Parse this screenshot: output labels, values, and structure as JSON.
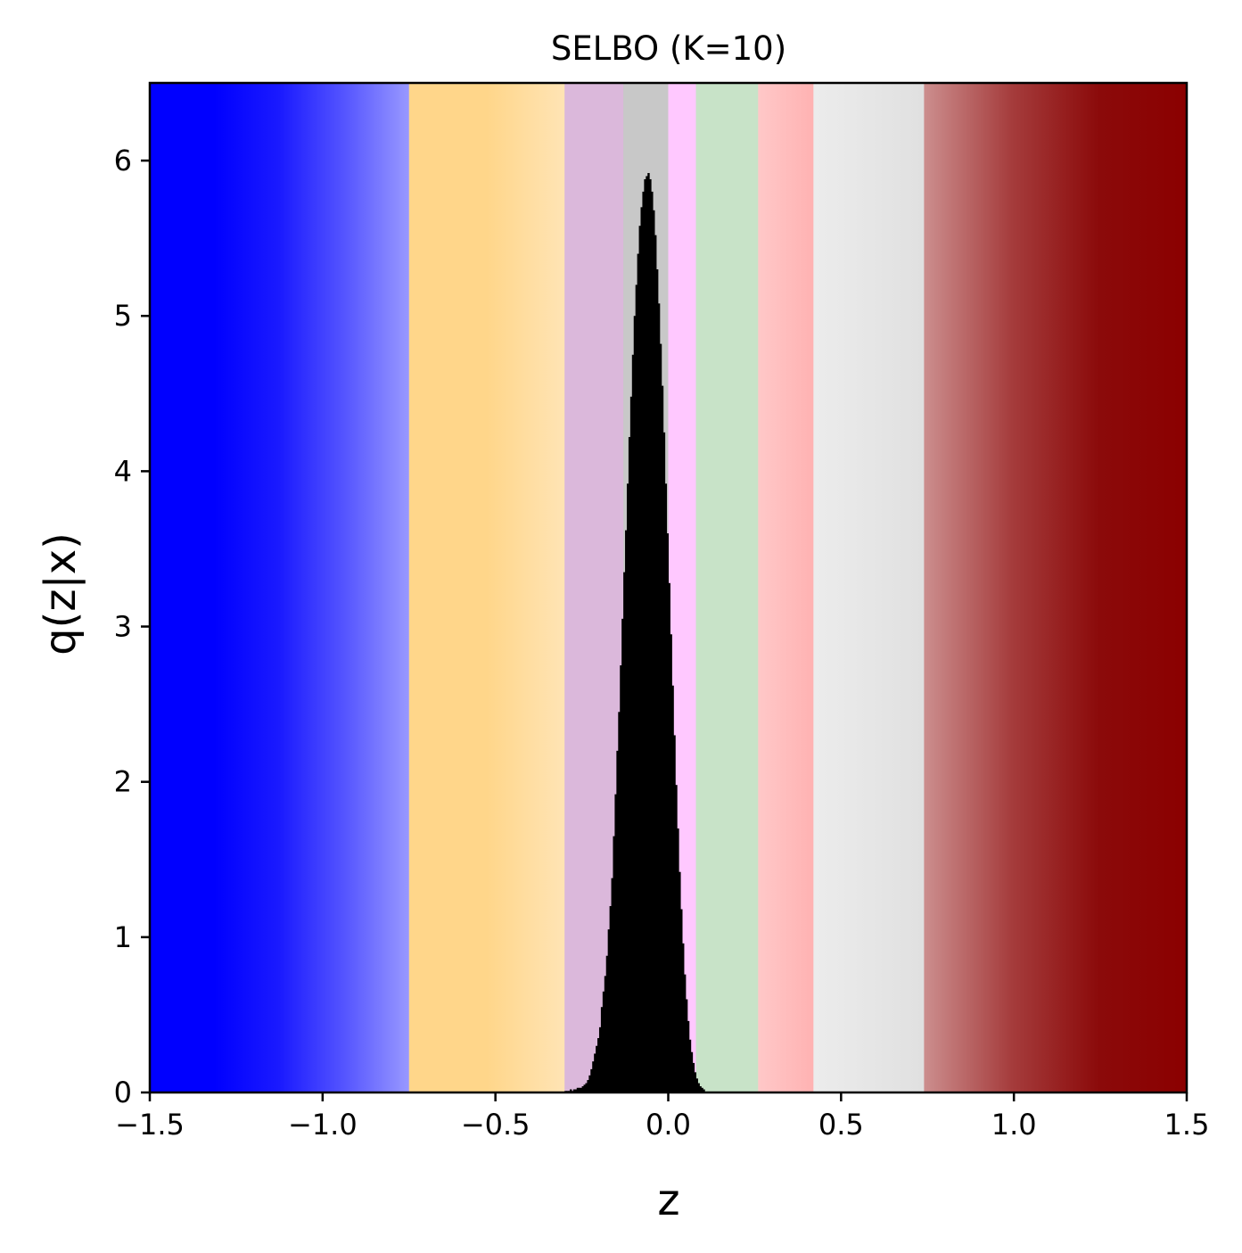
{
  "chart_data": {
    "type": "histogram",
    "title": "SELBO (K=10)",
    "xlabel": "z",
    "ylabel": "q(z|x)",
    "xlim": [
      -1.5,
      1.5
    ],
    "ylim": [
      0,
      6.5
    ],
    "xticks": [
      {
        "value": -1.5,
        "label": "−1.5"
      },
      {
        "value": -1.0,
        "label": "−1.0"
      },
      {
        "value": -0.5,
        "label": "−0.5"
      },
      {
        "value": 0.0,
        "label": "0.0"
      },
      {
        "value": 0.5,
        "label": "0.5"
      },
      {
        "value": 1.0,
        "label": "1.0"
      },
      {
        "value": 1.5,
        "label": "1.5"
      }
    ],
    "yticks": [
      {
        "value": 0,
        "label": "0"
      },
      {
        "value": 1,
        "label": "1"
      },
      {
        "value": 2,
        "label": "2"
      },
      {
        "value": 3,
        "label": "3"
      },
      {
        "value": 4,
        "label": "4"
      },
      {
        "value": 5,
        "label": "5"
      },
      {
        "value": 6,
        "label": "6"
      }
    ],
    "grid": false,
    "legend": "none",
    "background_regions": [
      {
        "x0": -1.5,
        "x1": -0.75,
        "colors": [
          "#0000ff",
          "#0000ff",
          "#1a1aff",
          "#5555ff",
          "#9999ff"
        ]
      },
      {
        "x0": -0.75,
        "x1": -0.3,
        "colors": [
          "#ffd68a",
          "#ffd68a",
          "#ffe4b5"
        ]
      },
      {
        "x0": -0.3,
        "x1": -0.13,
        "colors": [
          "#dbb8db"
        ]
      },
      {
        "x0": -0.13,
        "x1": 0.0,
        "colors": [
          "#c8c8c8"
        ]
      },
      {
        "x0": 0.0,
        "x1": 0.08,
        "colors": [
          "#ffc8ff"
        ]
      },
      {
        "x0": 0.08,
        "x1": 0.26,
        "colors": [
          "#c8e3c8"
        ]
      },
      {
        "x0": 0.26,
        "x1": 0.42,
        "colors": [
          "#ffc8c8",
          "#ffb2b2"
        ]
      },
      {
        "x0": 0.42,
        "x1": 0.74,
        "colors": [
          "#ececec",
          "#e0e0e0"
        ]
      },
      {
        "x0": 0.74,
        "x1": 1.5,
        "colors": [
          "#cc8e8e",
          "#a53c3c",
          "#8b0a0a",
          "#8b0000"
        ]
      }
    ],
    "series": [
      {
        "color": "#000000",
        "bins": {
          "start": -0.3,
          "width": 0.005
        },
        "values": [
          0.01,
          0.01,
          0.01,
          0.02,
          0.01,
          0.02,
          0.02,
          0.03,
          0.03,
          0.03,
          0.04,
          0.05,
          0.06,
          0.08,
          0.11,
          0.15,
          0.2,
          0.25,
          0.3,
          0.35,
          0.42,
          0.55,
          0.65,
          0.75,
          0.88,
          1.05,
          1.2,
          1.38,
          1.65,
          1.92,
          2.2,
          2.45,
          2.75,
          3.05,
          3.35,
          3.62,
          3.92,
          4.22,
          4.48,
          4.75,
          5.0,
          5.2,
          5.4,
          5.58,
          5.7,
          5.8,
          5.88,
          5.9,
          5.92,
          5.88,
          5.8,
          5.68,
          5.52,
          5.3,
          5.08,
          4.82,
          4.55,
          4.25,
          3.92,
          3.6,
          3.28,
          2.95,
          2.62,
          2.3,
          1.98,
          1.7,
          1.42,
          1.18,
          0.96,
          0.76,
          0.6,
          0.46,
          0.34,
          0.26,
          0.19,
          0.13,
          0.09,
          0.06,
          0.04,
          0.03,
          0.02
        ]
      }
    ]
  }
}
